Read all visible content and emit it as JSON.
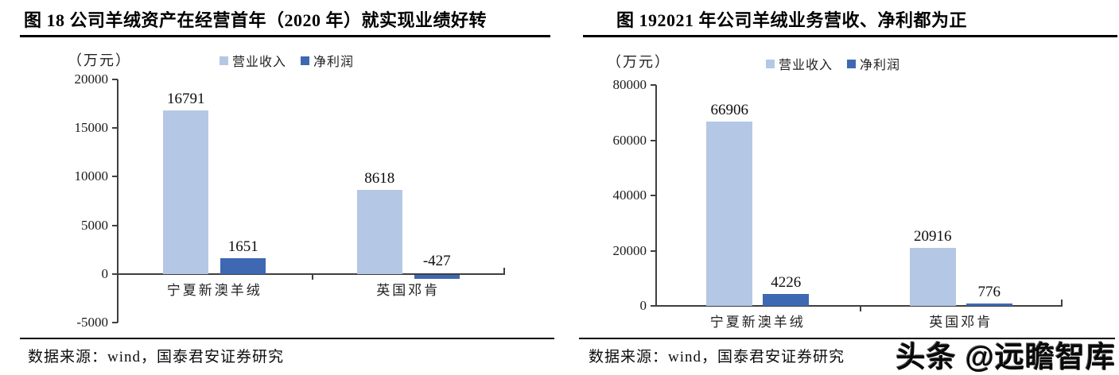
{
  "source": {
    "left": "数据来源：wind，国泰君安证券研究",
    "right": "数据来源：wind，国泰君安证券研究"
  },
  "watermark": "头条 @远瞻智库",
  "colors": {
    "revenue_light_blue": "#B4C7E5",
    "profit_dark_blue": "#3E68B2",
    "axis_gray": "#3f3f3f",
    "title_black": "#000000"
  },
  "chart_data": [
    {
      "type": "bar",
      "title": "图 18 公司羊绒资产在经营首年（2020 年）就实现业绩好转",
      "unit_label": "（万元）",
      "categories": [
        "宁夏新澳羊绒",
        "英国邓肯"
      ],
      "series": [
        {
          "name": "营业收入",
          "color": "#B4C7E5",
          "values": [
            16791,
            8618
          ]
        },
        {
          "name": "净利润",
          "color": "#3E68B2",
          "values": [
            1651,
            -427
          ]
        }
      ],
      "ylim": [
        -5000,
        20000
      ],
      "y_ticks": [
        20000,
        15000,
        10000,
        5000,
        0,
        -5000
      ],
      "xlabel": "",
      "ylabel": "万元",
      "legend_position": "top",
      "grid": false,
      "axis_color": "#3f3f3f"
    },
    {
      "type": "bar",
      "title": "图 192021 年公司羊绒业务营收、净利都为正",
      "unit_label": "（万元）",
      "categories": [
        "宁夏新澳羊绒",
        "英国邓肯"
      ],
      "series": [
        {
          "name": "营业收入",
          "color": "#B4C7E5",
          "values": [
            66906,
            20916
          ]
        },
        {
          "name": "净利润",
          "color": "#3E68B2",
          "values": [
            4226,
            776
          ]
        }
      ],
      "ylim": [
        0,
        80000
      ],
      "y_ticks": [
        80000,
        60000,
        40000,
        20000,
        0
      ],
      "xlabel": "",
      "ylabel": "万元",
      "legend_position": "top",
      "grid": false,
      "axis_color": "#3f3f3f"
    }
  ]
}
